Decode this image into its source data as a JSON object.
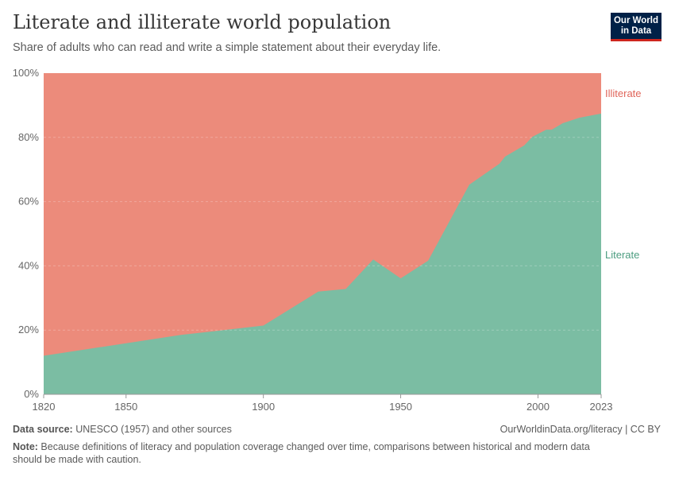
{
  "header": {
    "title": "Literate and illiterate world population",
    "subtitle": "Share of adults who can read and write a simple statement about their everyday life.",
    "logo": "Our World in Data"
  },
  "chart_data": {
    "type": "area",
    "stacked": true,
    "xlim": [
      1820,
      2023
    ],
    "ylim": [
      0,
      100
    ],
    "x_ticks": [
      "1820",
      "1850",
      "1900",
      "1950",
      "2000",
      "2023"
    ],
    "y_ticks": [
      "0%",
      "20%",
      "40%",
      "60%",
      "80%",
      "100%"
    ],
    "grid": "horizontal dashed",
    "series": [
      {
        "name": "Literate",
        "color": "#7bbda3",
        "x": [
          1820,
          1870,
          1900,
          1920,
          1930,
          1940,
          1950,
          1960,
          1975,
          1986,
          1988,
          1995,
          1998,
          2003,
          2005,
          2009,
          2015,
          2023
        ],
        "values": [
          12,
          18.5,
          21.4,
          32,
          32.8,
          42,
          36.1,
          41.6,
          65.3,
          71.8,
          74,
          77.5,
          80.2,
          82.4,
          82.4,
          84.4,
          86.1,
          87.4
        ]
      },
      {
        "name": "Illiterate",
        "color": "#ec8b7b"
      }
    ]
  },
  "footer": {
    "source_label": "Data source:",
    "source": " UNESCO (1957) and other sources",
    "url": "OurWorldinData.org/literacy | CC BY",
    "note_label": "Note:",
    "note": " Because definitions of literacy and population coverage changed over time, comparisons between historical and modern data should be made with caution."
  }
}
